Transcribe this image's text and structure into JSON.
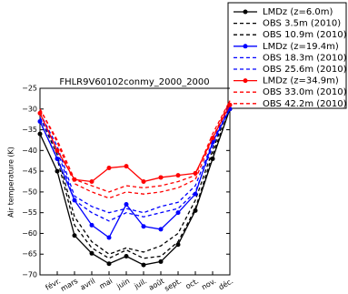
{
  "chart_data": {
    "type": "line",
    "title": "FHLR9V60102conmy_2000_2000",
    "y_label": "Air temperature (K)",
    "categories": [
      null,
      "févr.",
      "mars",
      "avril",
      "mai",
      "juin",
      "juil.",
      "août",
      "sept.",
      "oct.",
      "nov.",
      "déc."
    ],
    "ylim": [
      -70,
      -25
    ],
    "yticks": [
      {
        "value": -25,
        "label": "−25"
      },
      {
        "value": -30,
        "label": "−30"
      },
      {
        "value": -35,
        "label": "−35"
      },
      {
        "value": -40,
        "label": "−40"
      },
      {
        "value": -45,
        "label": "−45"
      },
      {
        "value": -50,
        "label": "−50"
      },
      {
        "value": -55,
        "label": "−55"
      },
      {
        "value": -60,
        "label": "−60"
      },
      {
        "value": -65,
        "label": "−65"
      },
      {
        "value": -70,
        "label": "−70"
      }
    ],
    "legend": "outside upper right",
    "series": [
      {
        "name": "LMDz (z=6.0m)",
        "color": "#000000",
        "linestyle": "solid",
        "marker": "circle",
        "values": [
          -36,
          -45,
          -60.5,
          -64.8,
          -67.3,
          -65.5,
          -67.6,
          -66.8,
          -62.7,
          -54.5,
          -42,
          -30
        ]
      },
      {
        "name": "OBS 3.5m (2010)",
        "color": "#000000",
        "linestyle": "dashed",
        "values": [
          -33,
          -42,
          -58,
          -63.5,
          -66,
          -64,
          -66,
          -65.5,
          -62,
          -54,
          -41,
          -30
        ]
      },
      {
        "name": "OBS 10.9m (2010)",
        "color": "#000000",
        "linestyle": "dashed",
        "values": [
          -32,
          -41,
          -56,
          -62,
          -65,
          -63.5,
          -64.5,
          -63,
          -60,
          -52,
          -40,
          -29
        ]
      },
      {
        "name": "LMDz (z=19.4m)",
        "color": "#0000ff",
        "linestyle": "solid",
        "marker": "circle",
        "values": [
          -33,
          -42,
          -52,
          -58,
          -61,
          -53,
          -58.3,
          -59,
          -55,
          -50.5,
          -38,
          -30
        ]
      },
      {
        "name": "OBS 18.3m (2010)",
        "color": "#0000ff",
        "linestyle": "dashed",
        "values": [
          -32,
          -40,
          -52,
          -55,
          -57,
          -55,
          -56,
          -55,
          -54,
          -50,
          -39,
          -29
        ]
      },
      {
        "name": "OBS 25.6m (2010)",
        "color": "#0000ff",
        "linestyle": "dashed",
        "values": [
          -31,
          -39,
          -51,
          -53.5,
          -55,
          -54,
          -55,
          -53.5,
          -52.5,
          -48.5,
          -38,
          -28.5
        ]
      },
      {
        "name": "LMDz (z=34.9m)",
        "color": "#ff0000",
        "linestyle": "solid",
        "marker": "circle",
        "values": [
          -31,
          -40,
          -47,
          -47.5,
          -44.2,
          -43.8,
          -47.5,
          -46.5,
          -46,
          -45.5,
          -37,
          -29
        ]
      },
      {
        "name": "OBS 33.0m (2010)",
        "color": "#ff0000",
        "linestyle": "dashed",
        "values": [
          -30,
          -38,
          -48,
          -50,
          -51.5,
          -50,
          -50.5,
          -50,
          -49,
          -47,
          -37,
          -28
        ]
      },
      {
        "name": "OBS 42.2m (2010)",
        "color": "#ff0000",
        "linestyle": "dashed",
        "values": [
          -30,
          -37.5,
          -47,
          -48.5,
          -50,
          -48.5,
          -49,
          -48.5,
          -47.5,
          -46,
          -36,
          -28
        ]
      }
    ]
  }
}
